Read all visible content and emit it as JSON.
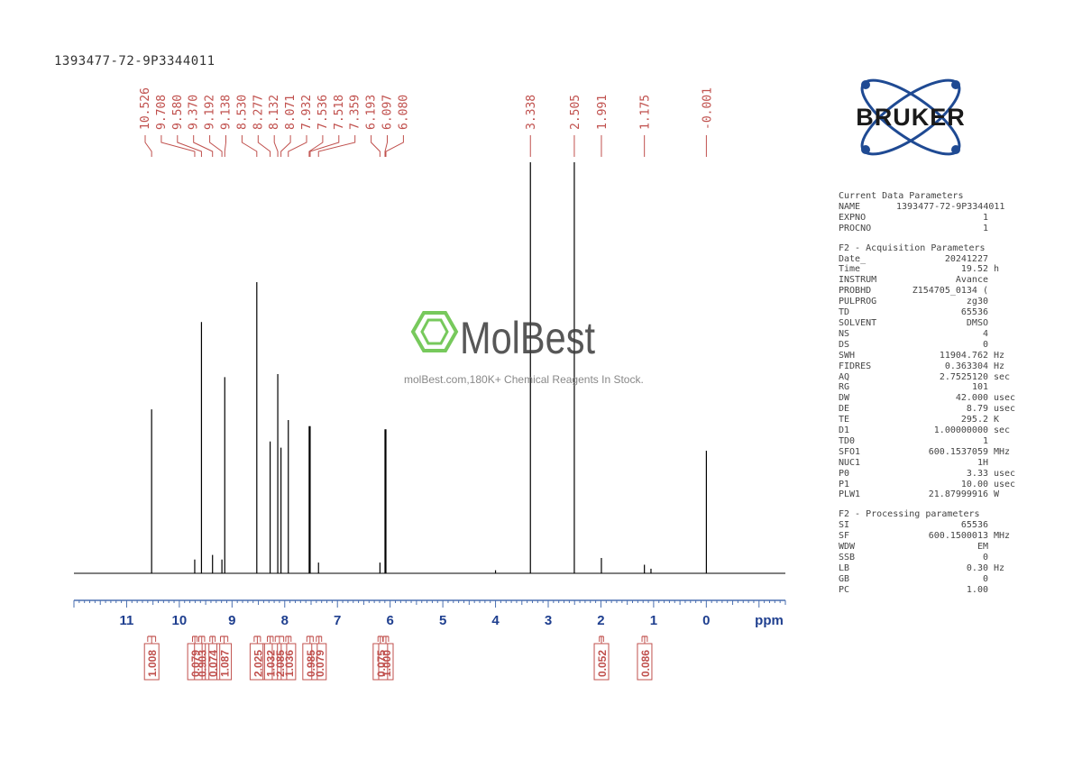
{
  "sample_id": "1393477-72-9P3344011",
  "watermark": {
    "brand": "MolBest",
    "tagline": "molBest.com,180K+ Chemical Reagents In Stock."
  },
  "logo": {
    "text": "BRUKER"
  },
  "colors": {
    "axis": "#4a6fb0",
    "labels": "#c0504d",
    "trace": "#000000",
    "logo_blue": "#1f4a93",
    "watermark": "#3a3a3a",
    "hexagon": "#5fbf3f"
  },
  "chart_data": {
    "type": "line",
    "xlabel": "ppm",
    "xlim": [
      12,
      -1.5
    ],
    "x_ticks": [
      "11",
      "10",
      "9",
      "8",
      "7",
      "6",
      "5",
      "4",
      "3",
      "2",
      "1",
      "0"
    ],
    "peak_labels": [
      "10.526",
      "9.708",
      "9.580",
      "9.370",
      "9.192",
      "9.138",
      "8.530",
      "8.277",
      "8.132",
      "8.071",
      "7.932",
      "7.536",
      "7.518",
      "7.359",
      "6.193",
      "6.097",
      "6.080",
      "3.338",
      "2.505",
      "1.991",
      "1.175",
      "-0.001"
    ],
    "peaks": [
      {
        "ppm": 10.526,
        "rel": 0.535
      },
      {
        "ppm": 9.708,
        "rel": 0.045
      },
      {
        "ppm": 9.58,
        "rel": 0.82
      },
      {
        "ppm": 9.37,
        "rel": 0.06
      },
      {
        "ppm": 9.192,
        "rel": 0.045
      },
      {
        "ppm": 9.138,
        "rel": 0.64
      },
      {
        "ppm": 8.53,
        "rel": 0.95
      },
      {
        "ppm": 8.277,
        "rel": 0.43
      },
      {
        "ppm": 8.132,
        "rel": 0.65
      },
      {
        "ppm": 8.071,
        "rel": 0.41
      },
      {
        "ppm": 7.932,
        "rel": 0.5
      },
      {
        "ppm": 7.536,
        "rel": 0.48
      },
      {
        "ppm": 7.518,
        "rel": 0.48
      },
      {
        "ppm": 7.359,
        "rel": 0.035
      },
      {
        "ppm": 6.193,
        "rel": 0.035
      },
      {
        "ppm": 6.097,
        "rel": 0.47
      },
      {
        "ppm": 6.08,
        "rel": 0.47
      },
      {
        "ppm": 4.0,
        "rel": 0.01
      },
      {
        "ppm": 3.338,
        "rel": 1.4
      },
      {
        "ppm": 2.505,
        "rel": 1.4
      },
      {
        "ppm": 1.991,
        "rel": 0.05
      },
      {
        "ppm": 1.175,
        "rel": 0.028
      },
      {
        "ppm": 1.05,
        "rel": 0.015
      },
      {
        "ppm": -0.001,
        "rel": 0.4
      }
    ],
    "integrals": [
      {
        "value": "1.008",
        "from": 10.6,
        "to": 10.45
      },
      {
        "value": "0.079",
        "from": 9.75,
        "to": 9.66
      },
      {
        "value": "0.903",
        "from": 9.63,
        "to": 9.52
      },
      {
        "value": "0.074",
        "from": 9.42,
        "to": 9.32
      },
      {
        "value": "1.087",
        "from": 9.22,
        "to": 9.08
      },
      {
        "value": "2.025",
        "from": 8.58,
        "to": 8.46
      },
      {
        "value": "1.032",
        "from": 8.33,
        "to": 8.22
      },
      {
        "value": "2.085",
        "from": 8.18,
        "to": 8.02
      },
      {
        "value": "1.036",
        "from": 7.98,
        "to": 7.88
      },
      {
        "value": "0.985",
        "from": 7.58,
        "to": 7.46
      },
      {
        "value": "0.079",
        "from": 7.4,
        "to": 7.3
      },
      {
        "value": "0.075",
        "from": 6.23,
        "to": 6.14
      },
      {
        "value": "1.000",
        "from": 6.13,
        "to": 6.03
      },
      {
        "value": "0.052",
        "from": 2.03,
        "to": 1.95
      },
      {
        "value": "0.086",
        "from": 1.22,
        "to": 1.12
      }
    ]
  },
  "params": {
    "current": {
      "title": "Current Data Parameters",
      "rows": [
        {
          "k": "NAME",
          "v": "1393477-72-9P3344011",
          "u": ""
        },
        {
          "k": "EXPNO",
          "v": "1",
          "u": ""
        },
        {
          "k": "PROCNO",
          "v": "1",
          "u": ""
        }
      ]
    },
    "acquisition": {
      "title": "F2 - Acquisition Parameters",
      "rows": [
        {
          "k": "Date_",
          "v": "20241227",
          "u": ""
        },
        {
          "k": "Time",
          "v": "19.52",
          "u": "h"
        },
        {
          "k": "INSTRUM",
          "v": "Avance",
          "u": ""
        },
        {
          "k": "PROBHD",
          "v": "Z154705_0134 (",
          "u": ""
        },
        {
          "k": "PULPROG",
          "v": "zg30",
          "u": ""
        },
        {
          "k": "TD",
          "v": "65536",
          "u": ""
        },
        {
          "k": "SOLVENT",
          "v": "DMSO",
          "u": ""
        },
        {
          "k": "NS",
          "v": "4",
          "u": ""
        },
        {
          "k": "DS",
          "v": "0",
          "u": ""
        },
        {
          "k": "SWH",
          "v": "11904.762",
          "u": "Hz"
        },
        {
          "k": "FIDRES",
          "v": "0.363304",
          "u": "Hz"
        },
        {
          "k": "AQ",
          "v": "2.7525120",
          "u": "sec"
        },
        {
          "k": "RG",
          "v": "101",
          "u": ""
        },
        {
          "k": "DW",
          "v": "42.000",
          "u": "usec"
        },
        {
          "k": "DE",
          "v": "8.79",
          "u": "usec"
        },
        {
          "k": "TE",
          "v": "295.2",
          "u": "K"
        },
        {
          "k": "D1",
          "v": "1.00000000",
          "u": "sec"
        },
        {
          "k": "TD0",
          "v": "1",
          "u": ""
        },
        {
          "k": "SFO1",
          "v": "600.1537059",
          "u": "MHz"
        },
        {
          "k": "NUC1",
          "v": "1H",
          "u": ""
        },
        {
          "k": "P0",
          "v": "3.33",
          "u": "usec"
        },
        {
          "k": "P1",
          "v": "10.00",
          "u": "usec"
        },
        {
          "k": "PLW1",
          "v": "21.87999916",
          "u": "W"
        }
      ]
    },
    "processing": {
      "title": "F2 - Processing parameters",
      "rows": [
        {
          "k": "SI",
          "v": "65536",
          "u": ""
        },
        {
          "k": "SF",
          "v": "600.1500013",
          "u": "MHz"
        },
        {
          "k": "WDW",
          "v": "EM",
          "u": ""
        },
        {
          "k": "SSB",
          "v": "0",
          "u": ""
        },
        {
          "k": "LB",
          "v": "0.30",
          "u": "Hz"
        },
        {
          "k": "GB",
          "v": "0",
          "u": ""
        },
        {
          "k": "PC",
          "v": "1.00",
          "u": ""
        }
      ]
    }
  }
}
